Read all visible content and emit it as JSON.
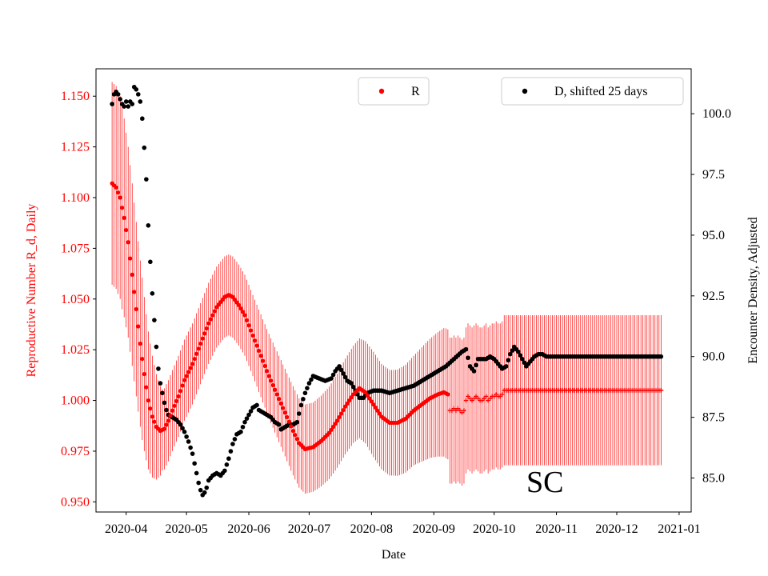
{
  "chart_data": {
    "type": "scatter",
    "title": "",
    "annotation": "SC",
    "xlabel": "Date",
    "ylabel_left": "Reproductive Number R_d, Daily",
    "ylabel_right": "Encounter Density, Adjusted",
    "x_start_date": "2020-03-25",
    "x_end_date": "2020-12-31",
    "xlim_days": [
      -8,
      288
    ],
    "ylim_left": [
      0.945,
      1.1635
    ],
    "ylim_right": [
      83.6,
      101.85
    ],
    "x_ticks": [
      {
        "label": "2020-04",
        "day": 7
      },
      {
        "label": "2020-05",
        "day": 37
      },
      {
        "label": "2020-06",
        "day": 68
      },
      {
        "label": "2020-07",
        "day": 98
      },
      {
        "label": "2020-08",
        "day": 129
      },
      {
        "label": "2020-09",
        "day": 160
      },
      {
        "label": "2020-10",
        "day": 190
      },
      {
        "label": "2020-11",
        "day": 221
      },
      {
        "label": "2020-12",
        "day": 251
      },
      {
        "label": "2021-01",
        "day": 282
      }
    ],
    "y_left_ticks": [
      {
        "label": "0.950",
        "value": 0.95
      },
      {
        "label": "0.975",
        "value": 0.975
      },
      {
        "label": "1.000",
        "value": 1.0
      },
      {
        "label": "1.025",
        "value": 1.025
      },
      {
        "label": "1.050",
        "value": 1.05
      },
      {
        "label": "1.075",
        "value": 1.075
      },
      {
        "label": "1.100",
        "value": 1.1
      },
      {
        "label": "1.125",
        "value": 1.125
      },
      {
        "label": "1.150",
        "value": 1.15
      }
    ],
    "y_right_ticks": [
      {
        "label": "85.0",
        "value": 85.0
      },
      {
        "label": "87.5",
        "value": 87.5
      },
      {
        "label": "90.0",
        "value": 90.0
      },
      {
        "label": "92.5",
        "value": 92.5
      },
      {
        "label": "95.0",
        "value": 95.0
      },
      {
        "label": "97.5",
        "value": 97.5
      },
      {
        "label": "100.0",
        "value": 100.0
      }
    ],
    "legend": [
      {
        "label": "R",
        "color": "#ff0000",
        "position": "top-center"
      },
      {
        "label": "D, shifted 25 days",
        "color": "#000000",
        "position": "top-right"
      }
    ],
    "series": [
      {
        "name": "R",
        "axis": "left",
        "color": "#ff0000",
        "marker": "dot",
        "knots": [
          [
            0,
            1.107
          ],
          [
            2,
            1.105
          ],
          [
            4,
            1.1
          ],
          [
            6,
            1.09
          ],
          [
            8,
            1.078
          ],
          [
            10,
            1.062
          ],
          [
            12,
            1.045
          ],
          [
            14,
            1.028
          ],
          [
            16,
            1.013
          ],
          [
            18,
            1.0
          ],
          [
            20,
            0.992
          ],
          [
            22,
            0.987
          ],
          [
            24,
            0.985
          ],
          [
            26,
            0.986
          ],
          [
            28,
            0.99
          ],
          [
            30,
            0.995
          ],
          [
            33,
            1.002
          ],
          [
            36,
            1.01
          ],
          [
            40,
            1.018
          ],
          [
            44,
            1.028
          ],
          [
            48,
            1.038
          ],
          [
            52,
            1.046
          ],
          [
            56,
            1.051
          ],
          [
            58,
            1.052
          ],
          [
            60,
            1.051
          ],
          [
            63,
            1.047
          ],
          [
            66,
            1.042
          ],
          [
            70,
            1.032
          ],
          [
            74,
            1.022
          ],
          [
            78,
            1.012
          ],
          [
            82,
            1.003
          ],
          [
            86,
            0.994
          ],
          [
            90,
            0.985
          ],
          [
            93,
            0.979
          ],
          [
            96,
            0.976
          ],
          [
            100,
            0.977
          ],
          [
            104,
            0.98
          ],
          [
            108,
            0.984
          ],
          [
            112,
            0.99
          ],
          [
            116,
            0.997
          ],
          [
            120,
            1.003
          ],
          [
            123,
            1.006
          ],
          [
            126,
            1.004
          ],
          [
            130,
            0.998
          ],
          [
            134,
            0.992
          ],
          [
            138,
            0.989
          ],
          [
            142,
            0.989
          ],
          [
            146,
            0.991
          ],
          [
            150,
            0.995
          ],
          [
            154,
            0.998
          ],
          [
            158,
            1.001
          ],
          [
            162,
            1.003
          ],
          [
            165,
            1.004
          ],
          [
            167,
            1.003
          ]
        ],
        "error_knots": [
          [
            0,
            0.05
          ],
          [
            5,
            0.05
          ],
          [
            10,
            0.045
          ],
          [
            15,
            0.04
          ],
          [
            20,
            0.03
          ],
          [
            25,
            0.02
          ],
          [
            35,
            0.02
          ],
          [
            50,
            0.02
          ],
          [
            60,
            0.02
          ],
          [
            70,
            0.02
          ],
          [
            80,
            0.021
          ],
          [
            90,
            0.022
          ],
          [
            100,
            0.022
          ],
          [
            110,
            0.023
          ],
          [
            120,
            0.024
          ],
          [
            130,
            0.026
          ],
          [
            140,
            0.026
          ],
          [
            150,
            0.027
          ],
          [
            160,
            0.03
          ],
          [
            166,
            0.032
          ]
        ],
        "tail_points": [
          [
            168,
            0.995
          ],
          [
            169,
            0.995
          ],
          [
            170,
            0.996
          ],
          [
            171,
            0.995
          ],
          [
            172,
            0.996
          ],
          [
            173,
            0.995
          ],
          [
            174,
            0.994
          ],
          [
            175,
            0.995
          ],
          [
            176,
            1.0
          ],
          [
            177,
            1.002
          ],
          [
            178,
            1.001
          ],
          [
            179,
            1.0
          ],
          [
            180,
            1.001
          ],
          [
            181,
            1.002
          ],
          [
            182,
            1.001
          ],
          [
            183,
            1.0
          ],
          [
            184,
            1.0
          ],
          [
            185,
            1.001
          ],
          [
            186,
            1.002
          ],
          [
            187,
            1.0
          ],
          [
            188,
            1.001
          ],
          [
            189,
            1.002
          ],
          [
            190,
            1.002
          ],
          [
            191,
            1.003
          ],
          [
            192,
            1.002
          ],
          [
            193,
            1.002
          ],
          [
            194,
            1.003
          ]
        ],
        "tail_error": 0.036,
        "tail_level": 1.005,
        "tail_level_error": 0.037,
        "tail_from_day": 195,
        "x_end_day": 273
      },
      {
        "name": "D, shifted 25 days",
        "axis": "right",
        "color": "#000000",
        "marker": "dot",
        "knots": [
          [
            0,
            100.4
          ],
          [
            1,
            100.8
          ],
          [
            2,
            100.9
          ],
          [
            3,
            100.8
          ],
          [
            4,
            100.6
          ],
          [
            5,
            100.4
          ],
          [
            6,
            100.3
          ],
          [
            7,
            100.5
          ],
          [
            8,
            100.3
          ],
          [
            9,
            100.5
          ],
          [
            10,
            100.4
          ],
          [
            11,
            101.1
          ],
          [
            12,
            101.0
          ],
          [
            13,
            100.8
          ],
          [
            14,
            100.5
          ],
          [
            15,
            99.8
          ],
          [
            16,
            98.6
          ],
          [
            17,
            97.3
          ],
          [
            18,
            95.4
          ],
          [
            19,
            93.9
          ],
          [
            20,
            92.6
          ],
          [
            21,
            91.5
          ],
          [
            22,
            90.4
          ],
          [
            23,
            89.5
          ],
          [
            24,
            88.9
          ],
          [
            25,
            88.5
          ],
          [
            26,
            88.1
          ],
          [
            27,
            87.8
          ],
          [
            28,
            87.6
          ],
          [
            30,
            87.5
          ],
          [
            32,
            87.4
          ],
          [
            34,
            87.2
          ],
          [
            36,
            86.9
          ],
          [
            38,
            86.5
          ],
          [
            40,
            86.0
          ],
          [
            41,
            85.6
          ],
          [
            42,
            85.2
          ],
          [
            43,
            84.8
          ],
          [
            44,
            84.5
          ],
          [
            45,
            84.3
          ],
          [
            46,
            84.4
          ],
          [
            47,
            84.6
          ],
          [
            48,
            84.9
          ],
          [
            50,
            85.1
          ],
          [
            52,
            85.2
          ],
          [
            54,
            85.1
          ],
          [
            56,
            85.3
          ],
          [
            58,
            85.8
          ],
          [
            60,
            86.4
          ],
          [
            62,
            86.8
          ],
          [
            64,
            86.9
          ],
          [
            66,
            87.3
          ],
          [
            68,
            87.6
          ],
          [
            70,
            87.9
          ],
          [
            72,
            88.0
          ],
          [
            73,
            87.8
          ],
          [
            75,
            87.7
          ],
          [
            77,
            87.6
          ],
          [
            79,
            87.5
          ],
          [
            81,
            87.3
          ],
          [
            83,
            87.2
          ],
          [
            84,
            87.0
          ],
          [
            86,
            87.1
          ],
          [
            88,
            87.2
          ],
          [
            90,
            87.2
          ],
          [
            92,
            87.3
          ],
          [
            94,
            88.0
          ],
          [
            96,
            88.5
          ],
          [
            98,
            88.9
          ],
          [
            100,
            89.2
          ],
          [
            103,
            89.1
          ],
          [
            106,
            89.0
          ],
          [
            109,
            89.1
          ],
          [
            111,
            89.4
          ],
          [
            113,
            89.6
          ],
          [
            115,
            89.3
          ],
          [
            117,
            89.0
          ],
          [
            119,
            88.9
          ],
          [
            121,
            88.6
          ],
          [
            123,
            88.3
          ],
          [
            125,
            88.3
          ],
          [
            127,
            88.5
          ],
          [
            130,
            88.6
          ],
          [
            134,
            88.6
          ],
          [
            138,
            88.5
          ],
          [
            142,
            88.6
          ],
          [
            146,
            88.7
          ],
          [
            150,
            88.8
          ],
          [
            154,
            89.0
          ],
          [
            158,
            89.2
          ],
          [
            162,
            89.4
          ],
          [
            166,
            89.6
          ],
          [
            170,
            89.9
          ],
          [
            174,
            90.2
          ],
          [
            176,
            90.3
          ],
          [
            178,
            89.6
          ],
          [
            180,
            89.4
          ],
          [
            182,
            89.9
          ],
          [
            184,
            89.9
          ],
          [
            186,
            89.9
          ],
          [
            188,
            90.0
          ],
          [
            190,
            89.9
          ],
          [
            192,
            89.7
          ],
          [
            194,
            89.5
          ],
          [
            196,
            89.6
          ],
          [
            198,
            90.1
          ],
          [
            200,
            90.4
          ],
          [
            202,
            90.2
          ],
          [
            204,
            89.9
          ],
          [
            206,
            89.6
          ],
          [
            208,
            89.8
          ],
          [
            210,
            90.0
          ],
          [
            212,
            90.1
          ],
          [
            214,
            90.1
          ],
          [
            216,
            90.0
          ],
          [
            218,
            90.0
          ],
          [
            220,
            90.0
          ],
          [
            230,
            90.0
          ],
          [
            240,
            90.0
          ],
          [
            250,
            90.0
          ],
          [
            262,
            90.0
          ],
          [
            273,
            90.0
          ]
        ]
      }
    ]
  }
}
